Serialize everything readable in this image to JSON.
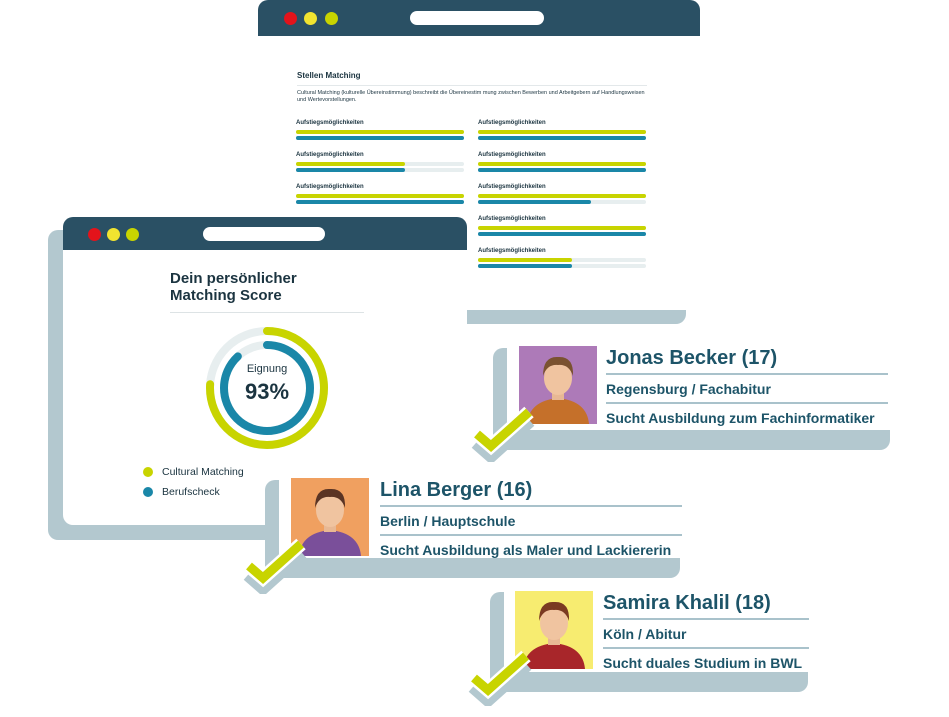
{
  "colors": {
    "lime": "#c8d400",
    "blue": "#1a87a8",
    "header": "#2a5064",
    "shadow": "#b3c8cf",
    "dot_red": "#e3131b",
    "dot_yellow": "#f1e430",
    "dot_green": "#c8d400"
  },
  "back_window": {
    "title": "Stellen Matching",
    "description": "Cultural Matching (kulturelle Übereinstimmung) beschreibt die Übereinestim mung zwischen Bewerben und Arbeitgebern auf Handlungsweisen und Wertevorstellungen.",
    "bars_left": [
      {
        "label": "Aufstiegsmöglichkeiten",
        "cultural": 1.0,
        "beruf": 1.0
      },
      {
        "label": "Aufstiegsmöglichkeiten",
        "cultural": 0.65,
        "beruf": 0.65
      },
      {
        "label": "Aufstiegsmöglichkeiten",
        "cultural": 1.0,
        "beruf": 1.0
      }
    ],
    "bars_right": [
      {
        "label": "Aufstiegsmöglichkeiten",
        "cultural": 1.0,
        "beruf": 1.0
      },
      {
        "label": "Aufstiegsmöglichkeiten",
        "cultural": 1.0,
        "beruf": 1.0
      },
      {
        "label": "Aufstiegsmöglichkeiten",
        "cultural": 1.0,
        "beruf": 0.67
      },
      {
        "label": "Aufstiegsmöglichkeiten",
        "cultural": 1.0,
        "beruf": 1.0
      },
      {
        "label": "Aufstiegsmöglichkeiten",
        "cultural": 0.56,
        "beruf": 0.56
      }
    ]
  },
  "front_window": {
    "title": "Dein persönlicher Matching Score",
    "donut_label": "Eignung",
    "donut_value": "93%",
    "cultural_fraction": 0.76,
    "beruf_fraction": 0.88,
    "legend": [
      {
        "label": "Cultural Matching",
        "color": "#c8d400"
      },
      {
        "label": "Berufscheck",
        "color": "#1a87a8"
      }
    ]
  },
  "candidates": [
    {
      "name": "Jonas Becker (17)",
      "location": "Regensburg / Fachabitur",
      "seeking": "Sucht Ausbildung zum Fachinformatiker",
      "photo_bg": "#ad7ab8",
      "shirt": "#c5702a",
      "hair": "#7a5230"
    },
    {
      "name": "Lina Berger (16)",
      "location": "Berlin / Hauptschule",
      "seeking": "Sucht Ausbildung als Maler und Lackiererin",
      "photo_bg": "#f0a060",
      "shirt": "#7a4f9a",
      "hair": "#5a3424"
    },
    {
      "name": "Samira Khalil (18)",
      "location": "Köln / Abitur",
      "seeking": "Sucht duales Studium in BWL",
      "photo_bg": "#f7ec70",
      "shirt": "#a8262a",
      "hair": "#7a3a22"
    }
  ]
}
